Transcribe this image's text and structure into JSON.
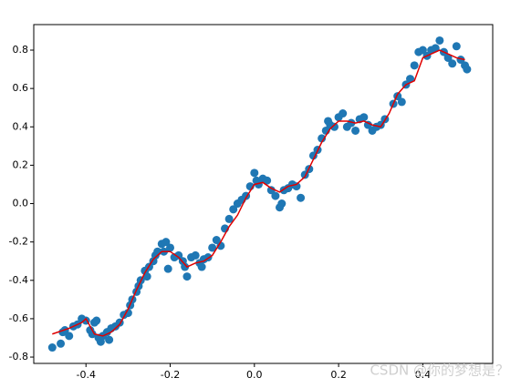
{
  "chart_data": {
    "type": "scatter",
    "series": [
      {
        "type": "scatter",
        "color": "#1f77b4",
        "x": [
          -0.48,
          -0.46,
          -0.455,
          -0.45,
          -0.44,
          -0.43,
          -0.42,
          -0.41,
          -0.4,
          -0.39,
          -0.385,
          -0.38,
          -0.375,
          -0.37,
          -0.365,
          -0.36,
          -0.35,
          -0.345,
          -0.34,
          -0.33,
          -0.32,
          -0.31,
          -0.3,
          -0.295,
          -0.29,
          -0.28,
          -0.275,
          -0.27,
          -0.26,
          -0.255,
          -0.25,
          -0.24,
          -0.235,
          -0.23,
          -0.22,
          -0.215,
          -0.21,
          -0.205,
          -0.2,
          -0.19,
          -0.18,
          -0.17,
          -0.165,
          -0.16,
          -0.15,
          -0.14,
          -0.13,
          -0.125,
          -0.12,
          -0.11,
          -0.1,
          -0.09,
          -0.08,
          -0.07,
          -0.06,
          -0.05,
          -0.04,
          -0.03,
          -0.02,
          -0.01,
          0.0,
          0.005,
          0.01,
          0.02,
          0.03,
          0.04,
          0.05,
          0.06,
          0.065,
          0.07,
          0.08,
          0.09,
          0.1,
          0.11,
          0.12,
          0.13,
          0.14,
          0.15,
          0.16,
          0.17,
          0.175,
          0.18,
          0.19,
          0.2,
          0.21,
          0.22,
          0.23,
          0.24,
          0.25,
          0.26,
          0.27,
          0.28,
          0.29,
          0.3,
          0.31,
          0.33,
          0.34,
          0.35,
          0.36,
          0.37,
          0.38,
          0.39,
          0.4,
          0.41,
          0.42,
          0.43,
          0.44,
          0.45,
          0.46,
          0.47,
          0.48,
          0.49,
          0.5,
          0.505
        ],
        "values": [
          -0.75,
          -0.73,
          -0.67,
          -0.66,
          -0.69,
          -0.64,
          -0.63,
          -0.6,
          -0.61,
          -0.66,
          -0.68,
          -0.62,
          -0.61,
          -0.7,
          -0.72,
          -0.69,
          -0.67,
          -0.71,
          -0.65,
          -0.64,
          -0.62,
          -0.58,
          -0.57,
          -0.53,
          -0.5,
          -0.46,
          -0.43,
          -0.4,
          -0.35,
          -0.38,
          -0.33,
          -0.3,
          -0.27,
          -0.25,
          -0.21,
          -0.25,
          -0.2,
          -0.34,
          -0.23,
          -0.28,
          -0.27,
          -0.3,
          -0.33,
          -0.38,
          -0.28,
          -0.27,
          -0.31,
          -0.33,
          -0.29,
          -0.28,
          -0.23,
          -0.19,
          -0.22,
          -0.13,
          -0.08,
          -0.03,
          0.0,
          0.02,
          0.04,
          0.09,
          0.16,
          0.12,
          0.1,
          0.13,
          0.12,
          0.07,
          0.04,
          -0.02,
          0.0,
          0.07,
          0.08,
          0.1,
          0.09,
          0.03,
          0.15,
          0.18,
          0.25,
          0.28,
          0.34,
          0.38,
          0.43,
          0.41,
          0.4,
          0.45,
          0.47,
          0.4,
          0.42,
          0.38,
          0.44,
          0.45,
          0.41,
          0.38,
          0.4,
          0.41,
          0.44,
          0.52,
          0.56,
          0.53,
          0.62,
          0.65,
          0.72,
          0.79,
          0.8,
          0.77,
          0.8,
          0.81,
          0.85,
          0.79,
          0.76,
          0.73,
          0.82,
          0.75,
          0.72,
          0.7
        ]
      },
      {
        "type": "line",
        "color": "#e00000",
        "x": [
          -0.48,
          -0.44,
          -0.41,
          -0.4,
          -0.39,
          -0.38,
          -0.36,
          -0.34,
          -0.32,
          -0.3,
          -0.28,
          -0.26,
          -0.24,
          -0.22,
          -0.2,
          -0.18,
          -0.16,
          -0.14,
          -0.12,
          -0.1,
          -0.08,
          -0.06,
          -0.04,
          -0.02,
          0.0,
          0.02,
          0.04,
          0.06,
          0.08,
          0.1,
          0.12,
          0.14,
          0.16,
          0.18,
          0.2,
          0.22,
          0.24,
          0.26,
          0.28,
          0.3,
          0.32,
          0.34,
          0.36,
          0.38,
          0.4,
          0.42,
          0.44,
          0.46,
          0.48,
          0.5
        ],
        "values": [
          -0.68,
          -0.65,
          -0.62,
          -0.6,
          -0.64,
          -0.68,
          -0.69,
          -0.67,
          -0.63,
          -0.55,
          -0.45,
          -0.36,
          -0.29,
          -0.25,
          -0.25,
          -0.28,
          -0.33,
          -0.31,
          -0.3,
          -0.27,
          -0.2,
          -0.12,
          -0.06,
          0.03,
          0.1,
          0.11,
          0.08,
          0.06,
          0.09,
          0.1,
          0.14,
          0.23,
          0.32,
          0.39,
          0.43,
          0.43,
          0.42,
          0.43,
          0.41,
          0.4,
          0.47,
          0.57,
          0.62,
          0.64,
          0.76,
          0.78,
          0.8,
          0.78,
          0.76,
          0.75
        ]
      }
    ],
    "xlim": [
      -0.524,
      0.566
    ],
    "ylim": [
      -0.833,
      0.933
    ],
    "xticks": [
      -0.4,
      -0.2,
      {
        "value": 0,
        "label": "0.0"
      },
      0.2,
      0.4
    ],
    "yticks": [
      -0.8,
      -0.6,
      -0.4,
      -0.2,
      {
        "value": 0,
        "label": "0.0"
      },
      0.2,
      0.4,
      0.6,
      0.8
    ]
  },
  "watermark": "CSDN @你的梦想是？"
}
